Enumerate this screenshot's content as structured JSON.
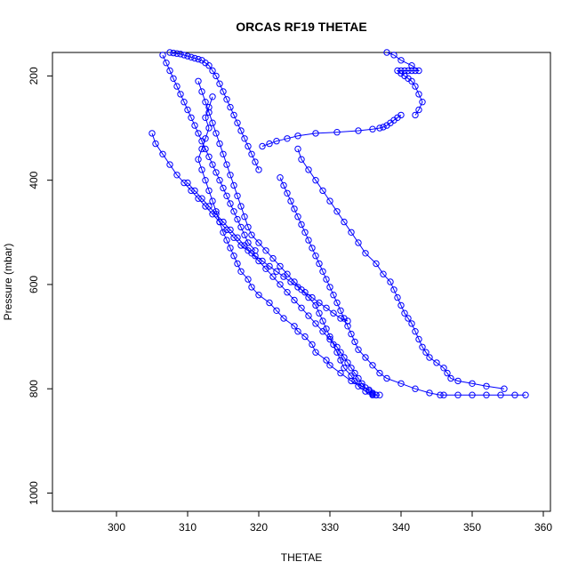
{
  "chart_data": {
    "type": "scatter",
    "title": "ORCAS RF19 THETAE",
    "xlabel": "THETAE",
    "ylabel": "Pressure (mbar)",
    "xlim": [
      291,
      361
    ],
    "ylim": [
      1035,
      155
    ],
    "y_reversed": true,
    "x_ticks": [
      300,
      310,
      320,
      330,
      340,
      350,
      360
    ],
    "y_ticks": [
      200,
      400,
      600,
      800,
      1000
    ],
    "x_tick_labels": [
      "300",
      "310",
      "320",
      "330",
      "340",
      "350",
      "360"
    ],
    "y_tick_labels": [
      "200",
      "400",
      "600",
      "800",
      "1000"
    ],
    "grid": false,
    "legend": "none",
    "colors": {
      "series": "#0000ff",
      "axis": "#000000",
      "background": "#ffffff"
    },
    "marker": "open-circle",
    "connected": true,
    "series": [
      {
        "x": [
          336.5,
          336.0,
          335.5,
          334.5,
          333.0,
          331.5,
          330.0,
          329.5,
          328.0,
          327.5,
          326.5,
          325.5,
          325.0,
          323.5,
          322.5,
          321.5,
          320.0,
          319.0,
          318.5,
          317.5,
          317.0,
          316.5,
          316.0,
          315.5,
          315.0,
          314.5,
          314.0,
          313.5,
          313.0,
          312.5,
          312.0,
          311.5,
          312.0,
          312.5,
          313.0,
          312.5,
          313.0,
          313.5
        ],
        "y": [
          812,
          808,
          802,
          795,
          785,
          770,
          755,
          745,
          730,
          715,
          700,
          690,
          680,
          665,
          650,
          635,
          620,
          605,
          590,
          575,
          560,
          545,
          530,
          515,
          500,
          480,
          460,
          440,
          420,
          400,
          380,
          360,
          340,
          320,
          300,
          280,
          260,
          240
        ]
      },
      {
        "x": [
          336.0,
          335.0,
          334.0,
          333.5,
          333.0,
          332.0,
          331.5,
          331.0,
          330.5,
          330.0,
          329.5,
          329.0,
          328.5,
          328.0,
          327.0,
          326.0,
          325.0,
          324.0,
          323.0,
          322.0,
          321.0,
          320.0,
          319.0,
          318.5,
          318.0,
          317.5,
          317.0,
          316.5,
          316.0,
          315.5,
          315.0,
          314.5,
          314.0,
          313.5,
          313.0,
          312.5,
          312.0,
          311.5
        ],
        "y": [
          812,
          805,
          795,
          785,
          775,
          760,
          745,
          730,
          715,
          700,
          685,
          670,
          655,
          640,
          625,
          610,
          595,
          580,
          565,
          550,
          535,
          520,
          505,
          490,
          470,
          450,
          430,
          410,
          390,
          370,
          350,
          330,
          310,
          290,
          270,
          250,
          230,
          210
        ]
      },
      {
        "x": [
          357.5,
          356.0,
          354.0,
          352.0,
          350.0,
          348.0,
          346.0,
          345.5,
          344.0,
          342.0,
          340.0,
          338.0,
          337.0,
          336.0,
          335.0,
          334.0,
          333.5,
          333.0,
          332.5,
          332.0,
          331.5,
          331.0,
          330.5,
          330.0,
          329.5,
          329.0,
          328.5,
          328.0,
          327.5,
          327.0,
          326.5,
          326.0,
          325.5,
          325.0,
          324.5,
          324.0,
          323.5,
          323.0
        ],
        "y": [
          812,
          812,
          812,
          812,
          812,
          812,
          812,
          812,
          808,
          800,
          790,
          780,
          770,
          755,
          740,
          725,
          710,
          695,
          680,
          665,
          650,
          635,
          620,
          605,
          590,
          575,
          560,
          545,
          530,
          515,
          500,
          485,
          470,
          455,
          440,
          425,
          410,
          395
        ]
      },
      {
        "x": [
          354.5,
          352.0,
          350.0,
          348.0,
          347.0,
          346.5,
          346.0,
          345.0,
          344.0,
          343.5,
          343.0,
          342.5,
          342.0,
          341.5,
          341.0,
          340.5,
          340.0,
          339.5,
          339.0,
          338.5,
          337.5,
          336.5,
          335.0,
          334.0,
          333.0,
          332.0,
          331.0,
          330.0,
          329.0,
          328.0,
          327.0,
          326.0,
          325.5
        ],
        "y": [
          800,
          795,
          790,
          785,
          780,
          770,
          760,
          750,
          740,
          730,
          720,
          705,
          690,
          675,
          665,
          655,
          640,
          625,
          610,
          595,
          580,
          560,
          540,
          520,
          500,
          480,
          460,
          440,
          420,
          400,
          380,
          360,
          340
        ]
      },
      {
        "x": [
          332.5,
          331.5,
          330.5,
          329.5,
          328.5,
          327.5,
          326.5,
          325.5,
          324.5,
          323.5,
          322.5,
          321.5,
          320.5,
          319.5,
          318.5,
          317.5,
          316.5,
          315.5,
          314.5,
          313.5,
          312.5,
          311.5,
          310.5,
          309.5,
          308.5,
          307.5,
          306.5,
          305.5,
          305.0
        ],
        "y": [
          670,
          665,
          655,
          645,
          635,
          625,
          615,
          605,
          595,
          585,
          575,
          565,
          555,
          545,
          535,
          525,
          510,
          495,
          480,
          465,
          450,
          435,
          420,
          405,
          390,
          370,
          350,
          330,
          310
        ]
      },
      {
        "x": [
          319.5,
          318.5,
          318.0,
          317.5,
          317.0,
          316.5,
          316.0,
          315.5,
          315.0,
          314.5,
          314.0,
          313.5,
          313.0,
          312.5,
          312.0,
          311.5,
          311.0,
          310.5,
          310.0,
          309.5,
          309.0,
          308.5,
          308.0,
          307.5,
          307.0,
          306.5
        ],
        "y": [
          535,
          520,
          505,
          490,
          475,
          460,
          445,
          430,
          415,
          400,
          385,
          370,
          355,
          340,
          325,
          310,
          295,
          280,
          265,
          250,
          235,
          220,
          205,
          190,
          175,
          160
        ]
      },
      {
        "x": [
          337.0,
          336.5,
          336.0,
          335.5,
          335.0,
          334.5,
          334.0,
          333.5,
          333.0,
          332.5,
          332.0,
          331.5,
          331.0,
          330.0,
          329.0,
          328.0,
          327.0,
          326.0,
          325.0,
          324.0,
          323.0,
          322.0,
          321.0,
          320.0,
          319.0,
          318.0,
          317.0,
          316.0,
          315.0,
          314.0,
          313.0,
          312.0,
          311.0,
          310.0
        ],
        "y": [
          812,
          812,
          810,
          805,
          798,
          790,
          780,
          770,
          760,
          750,
          740,
          730,
          720,
          705,
          690,
          675,
          660,
          645,
          630,
          615,
          600,
          585,
          570,
          555,
          540,
          525,
          510,
          495,
          480,
          465,
          450,
          435,
          420,
          405
        ]
      },
      {
        "x": [
          320.0,
          319.5,
          319.0,
          318.5,
          318.0,
          317.5,
          317.0,
          316.5,
          316.0,
          315.5,
          315.0,
          314.5,
          314.0,
          313.5,
          313.0,
          312.5,
          312.0,
          311.5,
          311.0,
          310.5,
          310.0,
          309.5,
          309.0,
          308.5,
          308.0,
          307.5
        ],
        "y": [
          380,
          365,
          350,
          335,
          320,
          305,
          290,
          275,
          260,
          245,
          230,
          215,
          200,
          190,
          180,
          175,
          170,
          168,
          166,
          164,
          162,
          160,
          158,
          157,
          156,
          155
        ]
      },
      {
        "x": [
          340.0,
          339.5,
          339.0,
          338.5,
          338.0,
          337.5,
          337.0,
          336.0,
          334.0,
          331.0,
          328.0,
          325.5,
          324.0,
          322.5,
          321.5,
          320.5
        ],
        "y": [
          275,
          280,
          285,
          290,
          295,
          298,
          300,
          302,
          305,
          308,
          310,
          315,
          320,
          325,
          330,
          335
        ]
      },
      {
        "x": [
          342.0,
          342.5,
          343.0,
          342.5,
          342.0,
          341.5,
          341.0,
          340.5,
          340.0,
          339.5,
          340.0,
          340.5,
          341.0,
          341.5,
          342.0,
          342.5,
          341.5,
          340.0,
          339.0,
          338.0
        ],
        "y": [
          275,
          265,
          250,
          235,
          220,
          210,
          205,
          200,
          195,
          190,
          190,
          190,
          190,
          190,
          190,
          190,
          180,
          170,
          160,
          155
        ]
      }
    ]
  }
}
